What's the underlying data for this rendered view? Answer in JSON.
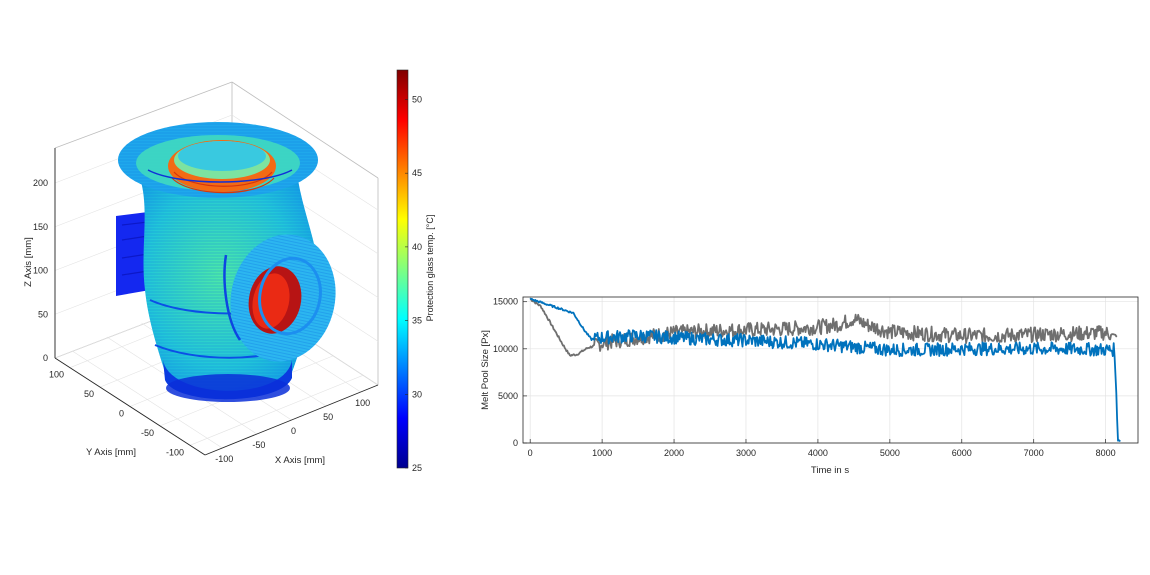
{
  "colors": {
    "series_blue": "#0072BD",
    "series_gray": "#6F6F6F",
    "grid": "#E3E3E3",
    "axis": "#262626",
    "box_lines": "#BDBDBD"
  },
  "chart_data": [
    {
      "type": "scatter3d",
      "title": "",
      "xlabel": "X Axis [mm]",
      "ylabel": "Y Axis [mm]",
      "zlabel": "Z Axis [mm]",
      "x_ticks": [
        "-100",
        "-50",
        "0",
        "50",
        "100"
      ],
      "y_ticks": [
        "-100",
        "-50",
        "0",
        "50",
        "100"
      ],
      "z_ticks": [
        "0",
        "50",
        "100",
        "150",
        "200"
      ],
      "xlim": [
        -125,
        125
      ],
      "ylim": [
        -125,
        125
      ],
      "zlim": [
        0,
        240
      ],
      "grid": true,
      "colorbar": {
        "label": "Protection glass temp. [°C]",
        "ticks": [
          "25",
          "30",
          "35",
          "40",
          "45",
          "50"
        ],
        "range": [
          25,
          52
        ],
        "colormap": "jet"
      },
      "object": "vase-shaped printed part with top flange ring and side nozzle ring, colored by protection glass temperature"
    },
    {
      "type": "line",
      "title": "",
      "xlabel": "Time in s",
      "ylabel": "Melt Pool Size [Px]",
      "x_ticks": [
        "0",
        "1000",
        "2000",
        "3000",
        "4000",
        "5000",
        "6000",
        "7000",
        "8000"
      ],
      "y_ticks": [
        "0",
        "5000",
        "10000",
        "15000"
      ],
      "xlim": [
        -100,
        8450
      ],
      "ylim": [
        0,
        15500
      ],
      "grid": true,
      "series": [
        {
          "color": "#0072BD",
          "x": [
            0,
            200,
            400,
            600,
            750,
            850,
            1000,
            1500,
            2000,
            2500,
            3000,
            3500,
            4000,
            4500,
            5000,
            5500,
            6000,
            6500,
            7000,
            7500,
            8000,
            8120,
            8150,
            8170,
            8200
          ],
          "y": [
            15300,
            14800,
            14300,
            13800,
            12000,
            11000,
            11200,
            11400,
            11200,
            11000,
            10900,
            10700,
            10500,
            10200,
            9900,
            9900,
            10000,
            10000,
            10000,
            10000,
            9900,
            9900,
            5000,
            300,
            300
          ],
          "noise": 700
        },
        {
          "color": "#6F6F6F",
          "x": [
            0,
            150,
            300,
            450,
            550,
            650,
            800,
            1000,
            1500,
            2000,
            2500,
            3000,
            3500,
            4000,
            4300,
            4500,
            4700,
            5000,
            5500,
            6000,
            6500,
            7000,
            7500,
            8000,
            8150
          ],
          "y": [
            15300,
            14500,
            12500,
            10500,
            9300,
            9400,
            10100,
            10600,
            11200,
            11700,
            11900,
            12000,
            12100,
            12300,
            12600,
            13200,
            12500,
            11800,
            11600,
            11400,
            11400,
            11500,
            11600,
            11700,
            11400
          ],
          "noise": 800
        }
      ]
    }
  ]
}
